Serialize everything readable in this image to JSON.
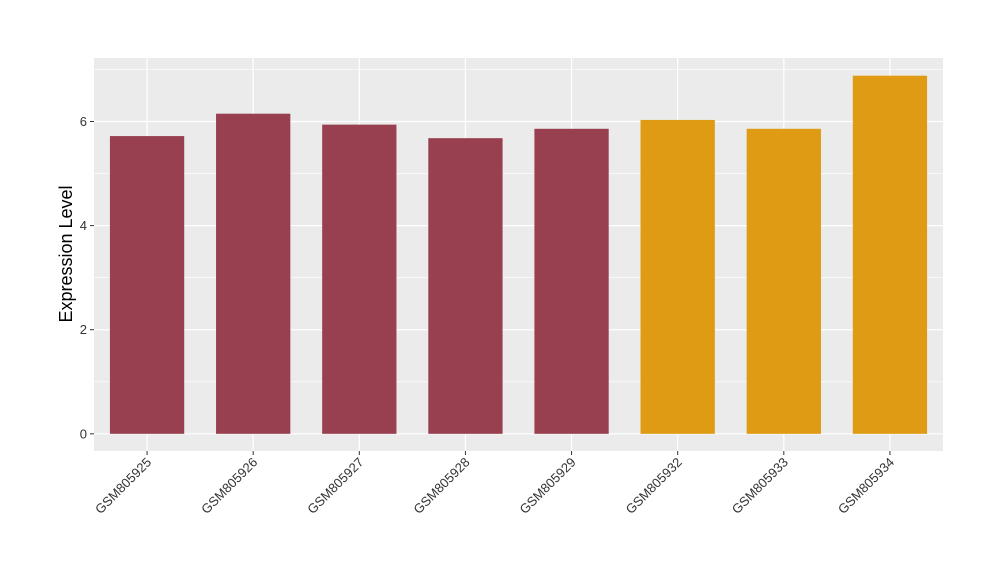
{
  "chart_data": {
    "type": "bar",
    "categories": [
      "GSM805925",
      "GSM805926",
      "GSM805927",
      "GSM805928",
      "GSM805929",
      "GSM805932",
      "GSM805933",
      "GSM805934"
    ],
    "values": [
      5.72,
      6.15,
      5.94,
      5.68,
      5.86,
      6.03,
      5.86,
      6.88
    ],
    "groups": [
      "a",
      "a",
      "a",
      "a",
      "a",
      "b",
      "b",
      "b"
    ],
    "group_colors": {
      "a": "#98404F",
      "b": "#DE9B13"
    },
    "xlabel": "",
    "ylabel": "Expression Level",
    "ylim": [
      -0.33,
      7.22
    ],
    "yticks": [
      0,
      2,
      4,
      6
    ],
    "grid": true,
    "panel_background": "#EBEBEB",
    "grid_color": "#FFFFFF"
  }
}
